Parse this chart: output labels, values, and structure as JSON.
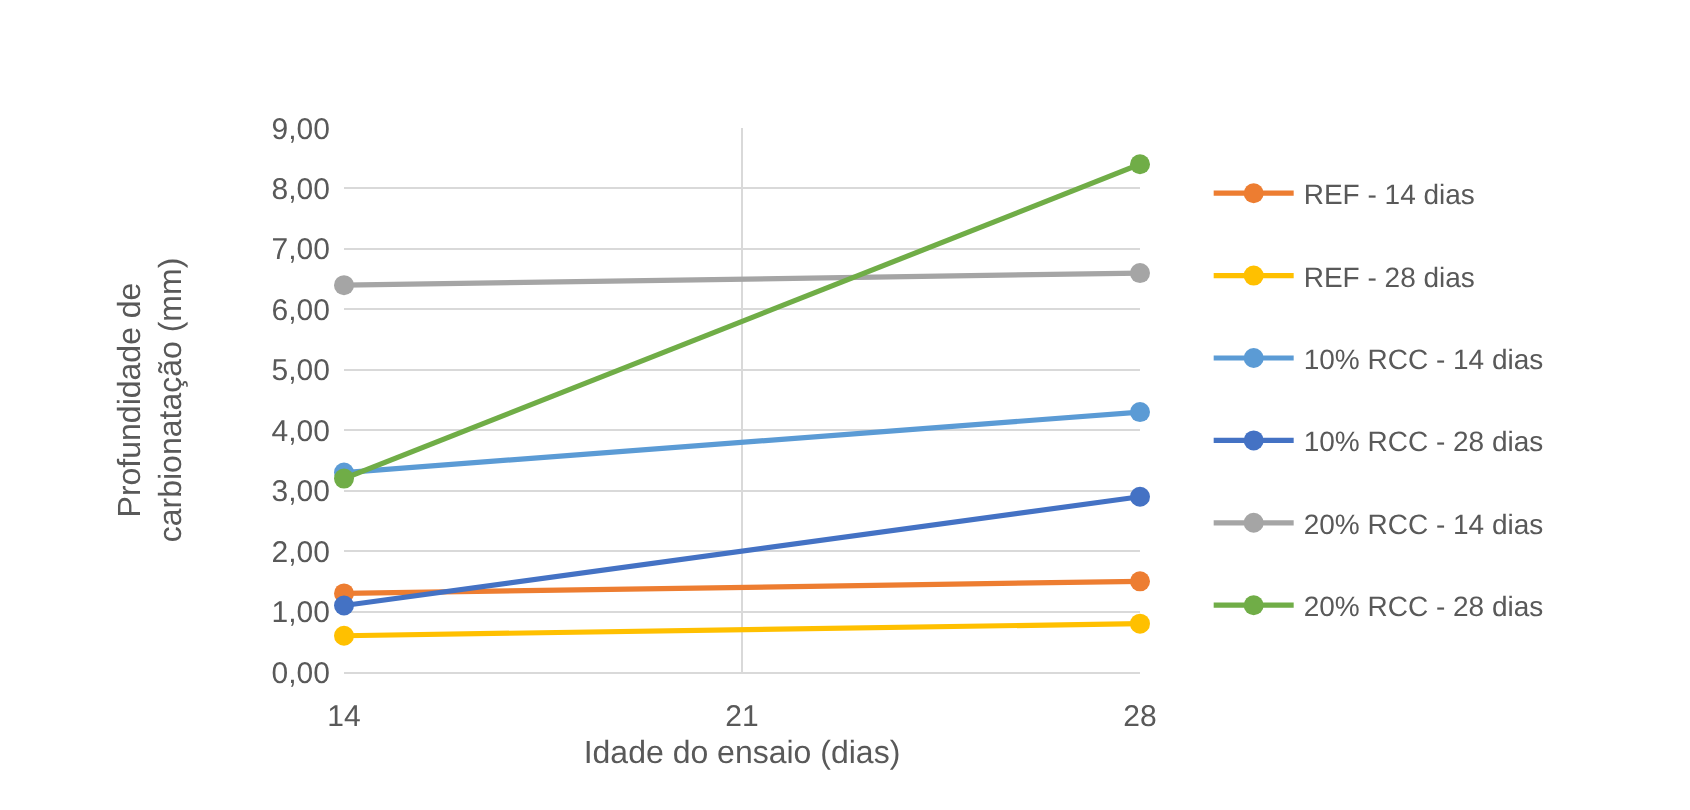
{
  "chart_data": {
    "type": "line",
    "xlabel": "Idade do ensaio (dias)",
    "ylabel": "Profundidade de carbionatação (mm)",
    "x": [
      14,
      28
    ],
    "xlim": [
      14,
      28
    ],
    "xticks": [
      14,
      21,
      28
    ],
    "ylim": [
      0,
      9
    ],
    "yticks": [
      {
        "value": 0,
        "label": "0,00"
      },
      {
        "value": 1,
        "label": "1,00"
      },
      {
        "value": 2,
        "label": "2,00"
      },
      {
        "value": 3,
        "label": "3,00"
      },
      {
        "value": 4,
        "label": "4,00"
      },
      {
        "value": 5,
        "label": "5,00"
      },
      {
        "value": 6,
        "label": "6,00"
      },
      {
        "value": 7,
        "label": "7,00"
      },
      {
        "value": 8,
        "label": "8,00"
      },
      {
        "value": 9,
        "label": "9,00"
      }
    ],
    "series": [
      {
        "name": "REF - 14 dias",
        "color": "#ed7d31",
        "values": [
          1.3,
          1.5
        ]
      },
      {
        "name": "REF - 28 dias",
        "color": "#ffc000",
        "values": [
          0.6,
          0.8
        ]
      },
      {
        "name": "10% RCC - 14 dias",
        "color": "#5b9bd5",
        "values": [
          3.3,
          4.3
        ]
      },
      {
        "name": "10% RCC - 28 dias",
        "color": "#4472c4",
        "values": [
          1.1,
          2.9
        ]
      },
      {
        "name": "20% RCC - 14 dias",
        "color": "#a5a5a5",
        "values": [
          6.4,
          6.6
        ]
      },
      {
        "name": "20% RCC - 28 dias",
        "color": "#70ad47",
        "values": [
          3.2,
          8.4
        ]
      }
    ],
    "grid": true,
    "legend": "right",
    "marker": "circle",
    "line_style": "solid"
  }
}
